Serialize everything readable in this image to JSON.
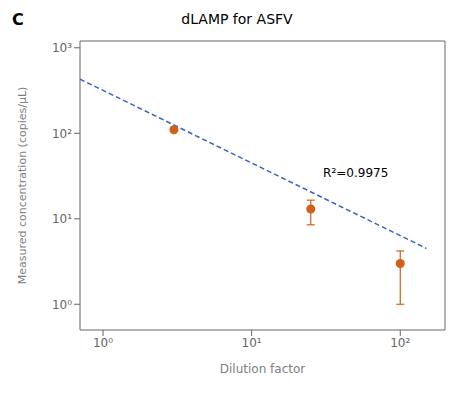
{
  "chart_data": {
    "type": "scatter",
    "title": "dLAMP for ASFV",
    "x_label": "Dilution factor",
    "y_label": "Measured concentration (copies/μL)",
    "log": true,
    "grid": false,
    "series": [
      {
        "type": "line",
        "line_style": "dashed",
        "color": "#3a5fc8",
        "x": [
          0.7,
          150
        ],
        "values": [
          430,
          4.5
        ]
      },
      {
        "type": "scatter",
        "marker": "circle",
        "color": "#d2601a",
        "x": [
          3,
          25,
          100
        ],
        "values": [
          110,
          13,
          3.0
        ],
        "error_upper": [
          0,
          3.5,
          1.2
        ],
        "error_lower": [
          0,
          4.5,
          2.0
        ]
      }
    ],
    "annotations": [
      {
        "text": "R²=0.9975",
        "x": 28,
        "y": 35
      },
      {
        "text": "C"
      }
    ],
    "xlim": [
      0.7,
      200
    ],
    "ylim": [
      0.5,
      1200
    ],
    "xticks": [
      {
        "value": 1,
        "label": "10⁰"
      },
      {
        "value": 10,
        "label": "10¹"
      },
      {
        "value": 100,
        "label": "10²"
      }
    ],
    "yticks": [
      {
        "value": 1,
        "label": "10⁰"
      },
      {
        "value": 10,
        "label": "10¹"
      },
      {
        "value": 100,
        "label": "10²"
      },
      {
        "value": 1000,
        "label": "10³"
      }
    ]
  }
}
